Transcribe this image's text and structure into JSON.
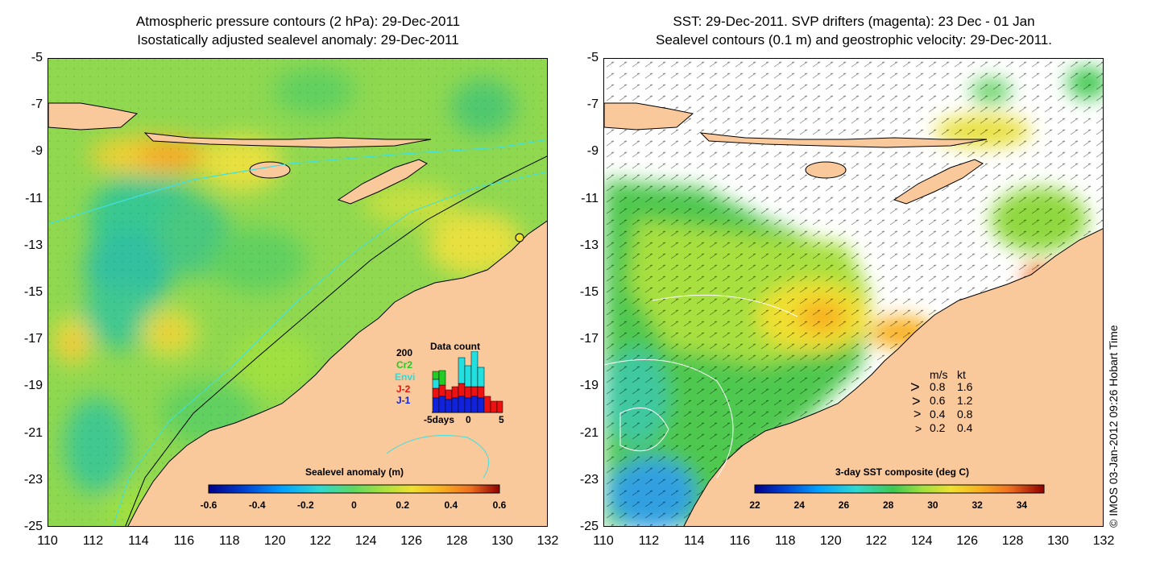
{
  "left_panel": {
    "title_line1": "Atmospheric pressure contours (2 hPa): 29-Dec-2011",
    "title_line2": "Isostatically adjusted sealevel anomaly: 29-Dec-2011",
    "colorbar": {
      "title": "Sealevel anomaly (m)",
      "ticks": [
        "-0.6",
        "-0.4",
        "-0.2",
        "0",
        "0.2",
        "0.4",
        "0.6"
      ],
      "range": [
        -0.6,
        0.6
      ]
    },
    "data_count": {
      "title": "Data count",
      "y_label": "200",
      "missions": [
        {
          "name": "Cr2",
          "color": "#22cc22"
        },
        {
          "name": "Envi",
          "color": "#22e0e0"
        },
        {
          "name": "J-2",
          "color": "#ee1111"
        },
        {
          "name": "J-1",
          "color": "#1122dd"
        }
      ],
      "x_ticks": [
        "-5days",
        "0",
        "5"
      ]
    }
  },
  "right_panel": {
    "title_line1": "SST: 29-Dec-2011. SVP drifters (magenta): 23 Dec - 01 Jan",
    "title_line2": "Sealevel contours (0.1 m) and geostrophic velocity: 29-Dec-2011.",
    "colorbar": {
      "title": "3-day SST composite (deg C)",
      "ticks": [
        "22",
        "24",
        "26",
        "28",
        "30",
        "32",
        "34"
      ],
      "range": [
        22,
        35
      ]
    },
    "velocity_legend": {
      "header_ms": "m/s",
      "header_kt": "kt",
      "rows": [
        {
          "ms": "0.8",
          "kt": "1.6"
        },
        {
          "ms": "0.6",
          "kt": "1.2"
        },
        {
          "ms": "0.4",
          "kt": "0.8"
        },
        {
          "ms": "0.2",
          "kt": "0.4"
        }
      ]
    }
  },
  "axes": {
    "x_ticks": [
      "110",
      "112",
      "114",
      "116",
      "118",
      "120",
      "122",
      "124",
      "126",
      "128",
      "130",
      "132"
    ],
    "y_ticks": [
      "-5",
      "-7",
      "-9",
      "-11",
      "-13",
      "-15",
      "-17",
      "-19",
      "-21",
      "-23",
      "-25"
    ],
    "lon_range": [
      110,
      132
    ],
    "lat_range": [
      -25,
      -5
    ]
  },
  "copyright": "© IMOS 03-Jan-2012 09:26 Hobart Time",
  "colors": {
    "land": "#f9c89b",
    "sla_colormap": [
      "#00008a",
      "#0040d0",
      "#00a0ff",
      "#30d8d0",
      "#60d860",
      "#a8e040",
      "#f0e030",
      "#f8b020",
      "#f07020",
      "#d02010",
      "#900000"
    ],
    "sst_colormap": [
      "#00008a",
      "#0040d0",
      "#00a0ff",
      "#30d8d0",
      "#40c850",
      "#a0e040",
      "#f0e030",
      "#f8b020",
      "#f07020",
      "#d02010",
      "#900000"
    ]
  }
}
